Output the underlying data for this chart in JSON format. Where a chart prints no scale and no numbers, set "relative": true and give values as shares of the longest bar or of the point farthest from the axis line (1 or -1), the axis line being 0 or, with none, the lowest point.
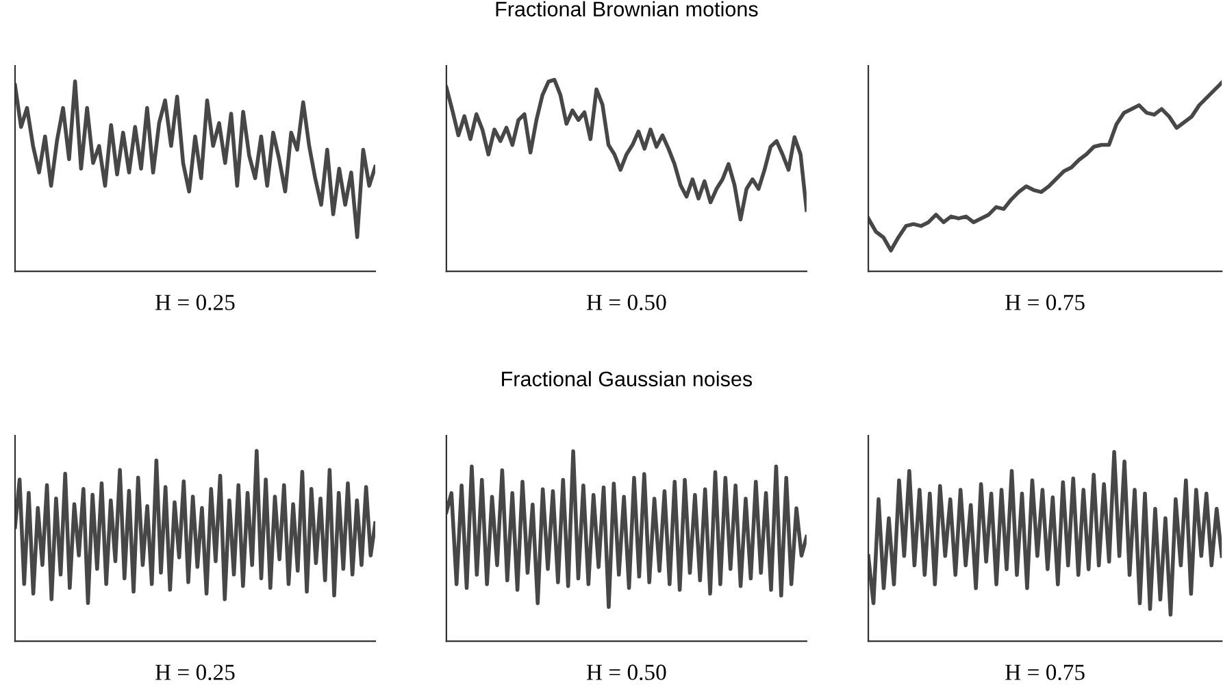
{
  "chart_data": [
    {
      "type": "line",
      "relative": true,
      "xlabel": "H = 0.25",
      "categories": [
        null,
        null,
        null,
        null,
        null,
        null,
        null,
        null,
        null,
        null,
        null,
        null,
        null,
        null,
        null,
        null,
        null,
        null,
        null,
        null,
        null,
        null,
        null,
        null,
        null,
        null,
        null,
        null,
        null,
        null,
        null,
        null,
        null,
        null,
        null,
        null,
        null,
        null,
        null,
        null,
        null,
        null,
        null,
        null,
        null,
        null,
        null,
        null,
        null,
        null,
        null,
        null,
        null,
        null,
        null,
        null,
        null,
        null,
        null,
        null,
        null
      ],
      "series": [
        {
          "color": "#474747",
          "values": [
            0.98,
            0.76,
            0.86,
            0.66,
            0.52,
            0.71,
            0.45,
            0.69,
            0.86,
            0.59,
            1.0,
            0.54,
            0.86,
            0.57,
            0.66,
            0.45,
            0.77,
            0.51,
            0.73,
            0.52,
            0.76,
            0.54,
            0.86,
            0.52,
            0.78,
            0.9,
            0.66,
            0.92,
            0.57,
            0.42,
            0.71,
            0.49,
            0.9,
            0.66,
            0.78,
            0.57,
            0.83,
            0.45,
            0.84,
            0.61,
            0.49,
            0.71,
            0.45,
            0.73,
            0.59,
            0.42,
            0.73,
            0.64,
            0.89,
            0.66,
            0.49,
            0.35,
            0.64,
            0.3,
            0.54,
            0.35,
            0.52,
            0.18,
            0.64,
            0.45,
            0.55
          ]
        }
      ]
    },
    {
      "type": "line",
      "relative": true,
      "title": "Fractional Brownian motions",
      "xlabel": "H = 0.50",
      "categories": [
        null,
        null,
        null,
        null,
        null,
        null,
        null,
        null,
        null,
        null,
        null,
        null,
        null,
        null,
        null,
        null,
        null,
        null,
        null,
        null,
        null,
        null,
        null,
        null,
        null,
        null,
        null,
        null,
        null,
        null,
        null,
        null,
        null,
        null,
        null,
        null,
        null,
        null,
        null,
        null,
        null,
        null,
        null,
        null,
        null,
        null,
        null,
        null,
        null,
        null,
        null,
        null,
        null,
        null,
        null,
        null,
        null,
        null,
        null,
        null,
        null
      ],
      "series": [
        {
          "color": "#474747",
          "values": [
            0.96,
            0.84,
            0.71,
            0.81,
            0.69,
            0.82,
            0.74,
            0.61,
            0.74,
            0.68,
            0.75,
            0.66,
            0.79,
            0.82,
            0.62,
            0.79,
            0.92,
            0.99,
            1.0,
            0.92,
            0.77,
            0.84,
            0.79,
            0.83,
            0.69,
            0.95,
            0.87,
            0.66,
            0.61,
            0.53,
            0.61,
            0.66,
            0.73,
            0.64,
            0.74,
            0.65,
            0.71,
            0.64,
            0.56,
            0.45,
            0.39,
            0.48,
            0.38,
            0.47,
            0.36,
            0.43,
            0.48,
            0.56,
            0.45,
            0.27,
            0.43,
            0.48,
            0.43,
            0.53,
            0.65,
            0.68,
            0.61,
            0.53,
            0.7,
            0.61,
            0.32
          ]
        }
      ]
    },
    {
      "type": "line",
      "relative": true,
      "xlabel": "H = 0.75",
      "categories": [
        null,
        null,
        null,
        null,
        null,
        null,
        null,
        null,
        null,
        null,
        null,
        null,
        null,
        null,
        null,
        null,
        null,
        null,
        null,
        null,
        null,
        null,
        null,
        null,
        null,
        null,
        null,
        null,
        null,
        null,
        null,
        null,
        null,
        null,
        null,
        null,
        null,
        null,
        null,
        null,
        null,
        null,
        null,
        null,
        null,
        null,
        null,
        null
      ],
      "series": [
        {
          "color": "#474747",
          "values": [
            0.28,
            0.21,
            0.18,
            0.11,
            0.18,
            0.24,
            0.25,
            0.24,
            0.26,
            0.3,
            0.26,
            0.29,
            0.28,
            0.29,
            0.26,
            0.28,
            0.3,
            0.34,
            0.33,
            0.38,
            0.42,
            0.45,
            0.43,
            0.42,
            0.45,
            0.49,
            0.53,
            0.55,
            0.59,
            0.62,
            0.66,
            0.67,
            0.67,
            0.78,
            0.84,
            0.86,
            0.88,
            0.84,
            0.83,
            0.86,
            0.82,
            0.76,
            0.79,
            0.82,
            0.88,
            0.92,
            0.96,
            1.0
          ]
        }
      ]
    },
    {
      "type": "line",
      "relative": true,
      "xlabel": "H = 0.25",
      "categories": [
        null,
        null,
        null,
        null,
        null,
        null,
        null,
        null,
        null,
        null,
        null,
        null,
        null,
        null,
        null,
        null,
        null,
        null,
        null,
        null,
        null,
        null,
        null,
        null,
        null,
        null,
        null,
        null,
        null,
        null,
        null,
        null,
        null,
        null,
        null,
        null,
        null,
        null,
        null,
        null,
        null,
        null,
        null,
        null,
        null,
        null,
        null,
        null,
        null,
        null,
        null,
        null,
        null,
        null,
        null,
        null,
        null,
        null,
        null,
        null,
        null,
        null,
        null,
        null,
        null,
        null,
        null,
        null,
        null,
        null,
        null,
        null,
        null,
        null,
        null,
        null,
        null,
        null,
        null,
        null
      ],
      "series": [
        {
          "color": "#474747",
          "values": [
            0.6,
            0.85,
            0.3,
            0.78,
            0.25,
            0.7,
            0.4,
            0.82,
            0.22,
            0.75,
            0.35,
            0.88,
            0.28,
            0.72,
            0.45,
            0.8,
            0.2,
            0.77,
            0.38,
            0.83,
            0.3,
            0.74,
            0.42,
            0.9,
            0.33,
            0.79,
            0.26,
            0.86,
            0.4,
            0.71,
            0.3,
            0.95,
            0.36,
            0.81,
            0.27,
            0.73,
            0.44,
            0.84,
            0.31,
            0.76,
            0.39,
            0.7,
            0.25,
            0.8,
            0.42,
            0.87,
            0.22,
            0.74,
            0.35,
            0.82,
            0.29,
            0.78,
            0.4,
            1.0,
            0.33,
            0.85,
            0.28,
            0.76,
            0.43,
            0.82,
            0.3,
            0.72,
            0.37,
            0.89,
            0.26,
            0.8,
            0.41,
            0.75,
            0.32,
            0.9,
            0.24,
            0.78,
            0.38,
            0.83,
            0.35,
            0.74,
            0.4,
            0.81,
            0.45,
            0.62
          ]
        }
      ]
    },
    {
      "type": "line",
      "relative": true,
      "title": "Fractional Gaussian noises",
      "xlabel": "H = 0.50",
      "categories": [
        null,
        null,
        null,
        null,
        null,
        null,
        null,
        null,
        null,
        null,
        null,
        null,
        null,
        null,
        null,
        null,
        null,
        null,
        null,
        null,
        null,
        null,
        null,
        null,
        null,
        null,
        null,
        null,
        null,
        null,
        null,
        null,
        null,
        null,
        null,
        null,
        null,
        null,
        null,
        null,
        null,
        null,
        null,
        null,
        null,
        null,
        null,
        null,
        null,
        null,
        null,
        null,
        null,
        null,
        null,
        null,
        null,
        null,
        null,
        null,
        null,
        null,
        null,
        null,
        null,
        null,
        null,
        null,
        null,
        null,
        null,
        null
      ],
      "series": [
        {
          "color": "#474747",
          "values": [
            0.68,
            0.78,
            0.3,
            0.82,
            0.28,
            0.92,
            0.35,
            0.85,
            0.3,
            0.76,
            0.4,
            0.9,
            0.32,
            0.78,
            0.27,
            0.84,
            0.36,
            0.72,
            0.2,
            0.8,
            0.38,
            0.79,
            0.31,
            0.85,
            0.29,
            1.0,
            0.33,
            0.82,
            0.3,
            0.77,
            0.39,
            0.81,
            0.18,
            0.83,
            0.35,
            0.76,
            0.28,
            0.86,
            0.34,
            0.88,
            0.31,
            0.75,
            0.37,
            0.79,
            0.3,
            0.84,
            0.27,
            0.85,
            0.36,
            0.77,
            0.32,
            0.8,
            0.25,
            0.89,
            0.3,
            0.86,
            0.38,
            0.82,
            0.29,
            0.75,
            0.33,
            0.84,
            0.36,
            0.78,
            0.27,
            0.92,
            0.24,
            0.86,
            0.3,
            0.7,
            0.45,
            0.55
          ]
        }
      ]
    },
    {
      "type": "line",
      "relative": true,
      "xlabel": "H = 0.75",
      "categories": [
        null,
        null,
        null,
        null,
        null,
        null,
        null,
        null,
        null,
        null,
        null,
        null,
        null,
        null,
        null,
        null,
        null,
        null,
        null,
        null,
        null,
        null,
        null,
        null,
        null,
        null,
        null,
        null,
        null,
        null,
        null,
        null,
        null,
        null,
        null,
        null,
        null,
        null,
        null,
        null,
        null,
        null,
        null,
        null,
        null,
        null,
        null,
        null,
        null,
        null,
        null,
        null,
        null,
        null,
        null,
        null,
        null,
        null,
        null,
        null,
        null,
        null,
        null,
        null,
        null,
        null,
        null,
        null,
        null,
        null
      ],
      "series": [
        {
          "color": "#474747",
          "values": [
            0.45,
            0.2,
            0.75,
            0.28,
            0.65,
            0.3,
            0.85,
            0.45,
            0.9,
            0.4,
            0.8,
            0.35,
            0.78,
            0.3,
            0.82,
            0.45,
            0.75,
            0.35,
            0.8,
            0.4,
            0.72,
            0.28,
            0.83,
            0.42,
            0.78,
            0.3,
            0.8,
            0.38,
            0.9,
            0.35,
            0.78,
            0.28,
            0.85,
            0.45,
            0.8,
            0.38,
            0.76,
            0.3,
            0.84,
            0.4,
            0.86,
            0.35,
            0.8,
            0.38,
            0.88,
            0.4,
            0.83,
            0.42,
            1.0,
            0.45,
            0.95,
            0.35,
            0.8,
            0.2,
            0.78,
            0.17,
            0.7,
            0.22,
            0.65,
            0.14,
            0.75,
            0.4,
            0.85,
            0.25,
            0.8,
            0.45,
            0.78,
            0.4,
            0.7,
            0.45
          ]
        }
      ]
    }
  ]
}
